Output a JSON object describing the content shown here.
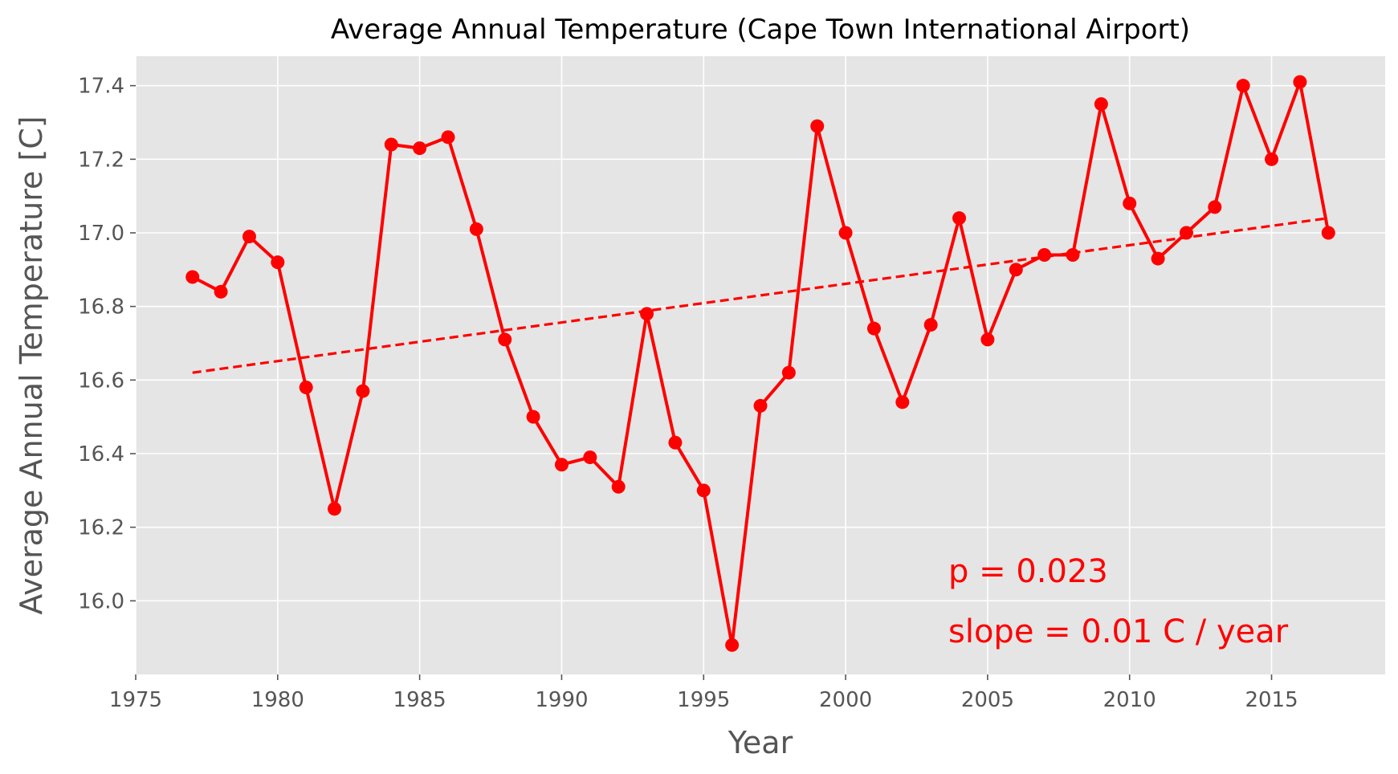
{
  "chart_data": {
    "type": "line",
    "title": "Average Annual Temperature (Cape Town International Airport)",
    "xlabel": "Year",
    "ylabel": "Average Annual Temperature [C]",
    "xlim": [
      1975,
      2019
    ],
    "ylim": [
      15.8,
      17.48
    ],
    "xticks": [
      1975,
      1980,
      1985,
      1990,
      1995,
      2000,
      2005,
      2010,
      2015
    ],
    "yticks": [
      "16.0",
      "16.2",
      "16.4",
      "16.6",
      "16.8",
      "17.0",
      "17.2",
      "17.4"
    ],
    "grid": true,
    "style": "ggplot",
    "colors": {
      "series": "#ff0000",
      "background": "#e5e5e5",
      "grid": "#ffffff"
    },
    "series": [
      {
        "x": [
          1977,
          1978,
          1979,
          1980,
          1981,
          1982,
          1983,
          1984,
          1985,
          1986,
          1987,
          1988,
          1989,
          1990,
          1991,
          1992,
          1993,
          1994,
          1995,
          1996,
          1997,
          1998,
          1999,
          2000,
          2001,
          2002,
          2003,
          2004,
          2005,
          2006,
          2007,
          2008,
          2009,
          2010,
          2011,
          2012,
          2013,
          2014,
          2015,
          2016,
          2017
        ],
        "values": [
          16.88,
          16.84,
          16.99,
          16.92,
          16.58,
          16.25,
          16.57,
          17.24,
          17.23,
          17.26,
          17.01,
          16.71,
          16.5,
          16.37,
          16.39,
          16.31,
          16.78,
          16.43,
          16.3,
          15.88,
          16.53,
          16.62,
          17.29,
          17.0,
          16.74,
          16.54,
          16.75,
          17.04,
          16.71,
          16.9,
          16.94,
          16.94,
          17.35,
          17.08,
          16.93,
          17.0,
          17.07,
          17.4,
          17.2,
          17.41,
          17.0
        ]
      },
      {
        "name": "trend",
        "x": [
          1977,
          2017
        ],
        "values": [
          16.62,
          17.04
        ]
      }
    ],
    "annotations": [
      "p = 0.023",
      "slope = 0.01 C / year"
    ]
  }
}
